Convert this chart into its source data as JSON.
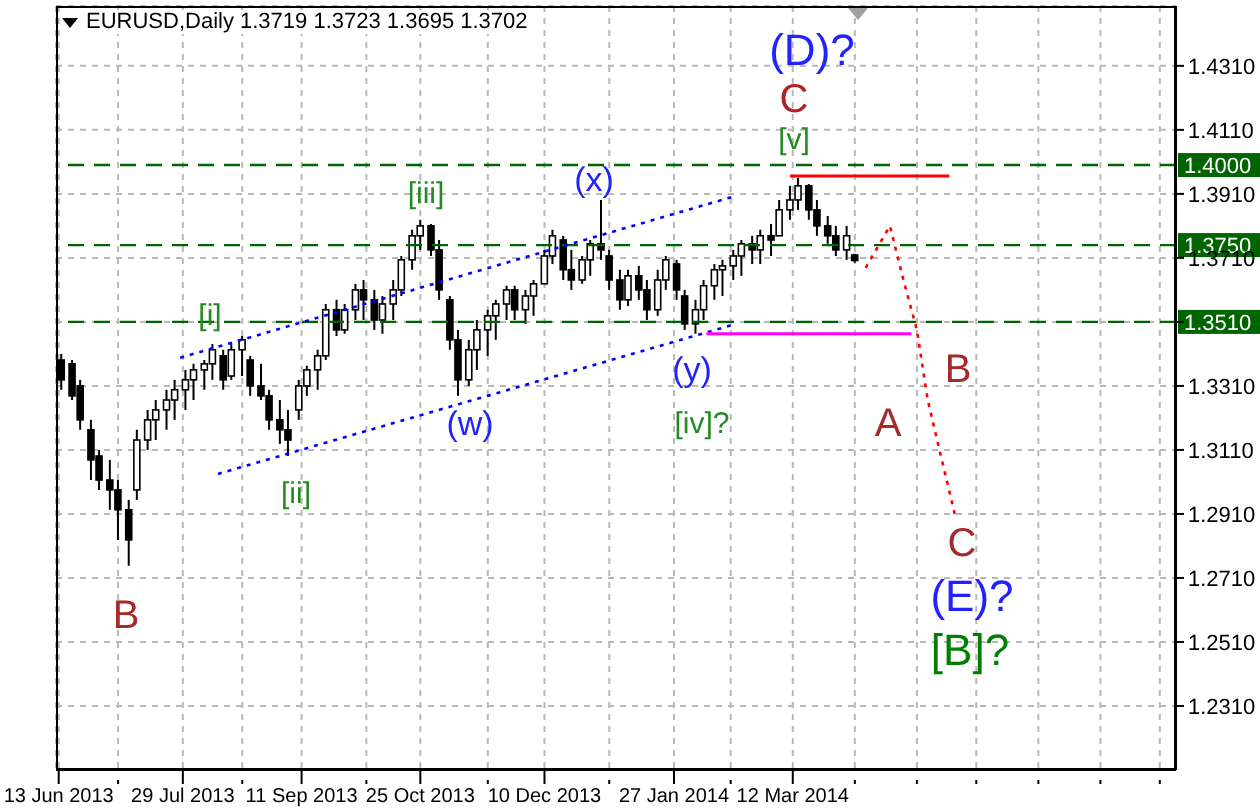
{
  "chart_data": {
    "type": "candlestick",
    "title": "EURUSD,Daily 1.3719 1.3723 1.3695 1.3702",
    "color": "#000000",
    "grid": true,
    "x": [
      "2013-06-14",
      "2013-06-18",
      "2013-06-21",
      "2013-06-25",
      "2013-06-28",
      "2013-07-02",
      "2013-07-05",
      "2013-07-09",
      "2013-07-12",
      "2013-07-16",
      "2013-07-19",
      "2013-07-23",
      "2013-07-26",
      "2013-07-30",
      "2013-08-02",
      "2013-08-06",
      "2013-08-09",
      "2013-08-13",
      "2013-08-16",
      "2013-08-20",
      "2013-08-23",
      "2013-08-27",
      "2013-08-30",
      "2013-09-03",
      "2013-09-06",
      "2013-09-10",
      "2013-09-13",
      "2013-09-17",
      "2013-09-20",
      "2013-09-24",
      "2013-09-27",
      "2013-10-01",
      "2013-10-04",
      "2013-10-08",
      "2013-10-11",
      "2013-10-15",
      "2013-10-18",
      "2013-10-22",
      "2013-10-25",
      "2013-10-29",
      "2013-11-01",
      "2013-11-05",
      "2013-11-08",
      "2013-11-12",
      "2013-11-15",
      "2013-11-19",
      "2013-11-22",
      "2013-11-26",
      "2013-11-29",
      "2013-12-03",
      "2013-12-06",
      "2013-12-10",
      "2013-12-13",
      "2013-12-17",
      "2013-12-20",
      "2013-12-24",
      "2013-12-27",
      "2013-12-31",
      "2014-01-03",
      "2014-01-07",
      "2014-01-10",
      "2014-01-14",
      "2014-01-17",
      "2014-01-21",
      "2014-01-24",
      "2014-01-28",
      "2014-01-31",
      "2014-02-04",
      "2014-02-07",
      "2014-02-11",
      "2014-02-14",
      "2014-02-18",
      "2014-02-21",
      "2014-02-25",
      "2014-02-28",
      "2014-03-04",
      "2014-03-07",
      "2014-03-11",
      "2014-03-14",
      "2014-03-18",
      "2014-03-21",
      "2014-03-25",
      "2014-03-28",
      "2014-04-01",
      "2014-04-04"
    ],
    "ohlc": [
      [
        1.3391,
        1.341,
        1.3298,
        1.3329
      ],
      [
        1.3379,
        1.3391,
        1.3266,
        1.3279
      ],
      [
        1.331,
        1.3329,
        1.3173,
        1.3204
      ],
      [
        1.3173,
        1.3204,
        1.3016,
        1.3079
      ],
      [
        1.3091,
        1.311,
        1.2985,
        1.3016
      ],
      [
        1.3016,
        1.3079,
        1.2923,
        1.2985
      ],
      [
        1.2985,
        1.3016,
        1.2829,
        1.2923
      ],
      [
        1.2923,
        1.2954,
        1.2748,
        1.2829
      ],
      [
        1.2985,
        1.3173,
        1.2954,
        1.3141
      ],
      [
        1.3141,
        1.3235,
        1.311,
        1.3204
      ],
      [
        1.3204,
        1.3266,
        1.3141,
        1.3235
      ],
      [
        1.3235,
        1.3298,
        1.3173,
        1.3266
      ],
      [
        1.3266,
        1.3329,
        1.3204,
        1.3298
      ],
      [
        1.3298,
        1.336,
        1.3235,
        1.3329
      ],
      [
        1.3329,
        1.3379,
        1.3266,
        1.336
      ],
      [
        1.336,
        1.3391,
        1.3298,
        1.3379
      ],
      [
        1.3379,
        1.3441,
        1.3329,
        1.3423
      ],
      [
        1.3404,
        1.3423,
        1.3298,
        1.3329
      ],
      [
        1.3341,
        1.3441,
        1.3329,
        1.3423
      ],
      [
        1.3423,
        1.3466,
        1.3341,
        1.3454
      ],
      [
        1.3391,
        1.3404,
        1.3279,
        1.331
      ],
      [
        1.331,
        1.3379,
        1.3266,
        1.3279
      ],
      [
        1.3279,
        1.3298,
        1.3173,
        1.3204
      ],
      [
        1.3204,
        1.3266,
        1.3129,
        1.3173
      ],
      [
        1.3173,
        1.3235,
        1.3091,
        1.3141
      ],
      [
        1.3235,
        1.3329,
        1.3204,
        1.331
      ],
      [
        1.331,
        1.3373,
        1.3279,
        1.336
      ],
      [
        1.336,
        1.3423,
        1.3298,
        1.3404
      ],
      [
        1.3404,
        1.3566,
        1.3391,
        1.3548
      ],
      [
        1.3548,
        1.3579,
        1.3466,
        1.3485
      ],
      [
        1.3485,
        1.3566,
        1.3473,
        1.3548
      ],
      [
        1.3548,
        1.3629,
        1.3516,
        1.361
      ],
      [
        1.361,
        1.3641,
        1.3516,
        1.3579
      ],
      [
        1.3579,
        1.361,
        1.3485,
        1.3516
      ],
      [
        1.3516,
        1.3591,
        1.3473,
        1.3566
      ],
      [
        1.3566,
        1.3641,
        1.3516,
        1.361
      ],
      [
        1.361,
        1.3716,
        1.3591,
        1.3704
      ],
      [
        1.3704,
        1.3798,
        1.3673,
        1.3779
      ],
      [
        1.3779,
        1.3829,
        1.3735,
        1.381
      ],
      [
        1.381,
        1.3816,
        1.3716,
        1.3735
      ],
      [
        1.3735,
        1.3766,
        1.3579,
        1.361
      ],
      [
        1.3579,
        1.3591,
        1.3423,
        1.3454
      ],
      [
        1.3454,
        1.3485,
        1.3279,
        1.3329
      ],
      [
        1.3329,
        1.3454,
        1.331,
        1.3423
      ],
      [
        1.3423,
        1.3516,
        1.336,
        1.3485
      ],
      [
        1.3485,
        1.3548,
        1.3404,
        1.3529
      ],
      [
        1.3529,
        1.3579,
        1.3454,
        1.3566
      ],
      [
        1.3566,
        1.3623,
        1.3516,
        1.361
      ],
      [
        1.361,
        1.3623,
        1.3516,
        1.3548
      ],
      [
        1.3548,
        1.361,
        1.3504,
        1.3591
      ],
      [
        1.3591,
        1.3641,
        1.3529,
        1.3629
      ],
      [
        1.3629,
        1.3735,
        1.3629,
        1.3716
      ],
      [
        1.3716,
        1.3798,
        1.3691,
        1.3779
      ],
      [
        1.3766,
        1.3779,
        1.3641,
        1.3673
      ],
      [
        1.3673,
        1.3735,
        1.361,
        1.3641
      ],
      [
        1.3641,
        1.3716,
        1.3629,
        1.3704
      ],
      [
        1.3704,
        1.3766,
        1.3654,
        1.3754
      ],
      [
        1.3754,
        1.3891,
        1.3704,
        1.3735
      ],
      [
        1.3716,
        1.3735,
        1.361,
        1.3641
      ],
      [
        1.3641,
        1.3673,
        1.3548,
        1.3579
      ],
      [
        1.3579,
        1.3673,
        1.356,
        1.3654
      ],
      [
        1.3654,
        1.3685,
        1.3579,
        1.361
      ],
      [
        1.361,
        1.3641,
        1.3516,
        1.3548
      ],
      [
        1.3548,
        1.3673,
        1.3529,
        1.3641
      ],
      [
        1.3641,
        1.3716,
        1.361,
        1.3704
      ],
      [
        1.3691,
        1.3704,
        1.3579,
        1.361
      ],
      [
        1.3591,
        1.361,
        1.3485,
        1.3504
      ],
      [
        1.3504,
        1.3579,
        1.3473,
        1.3548
      ],
      [
        1.3548,
        1.3641,
        1.3516,
        1.3623
      ],
      [
        1.3623,
        1.3691,
        1.3579,
        1.3673
      ],
      [
        1.3673,
        1.3704,
        1.3591,
        1.3685
      ],
      [
        1.3685,
        1.3735,
        1.3641,
        1.3716
      ],
      [
        1.3716,
        1.3766,
        1.3654,
        1.3754
      ],
      [
        1.3754,
        1.3779,
        1.3691,
        1.3735
      ],
      [
        1.3735,
        1.3798,
        1.3691,
        1.3779
      ],
      [
        1.3779,
        1.3816,
        1.3716,
        1.3766
      ],
      [
        1.3779,
        1.3891,
        1.3779,
        1.386
      ],
      [
        1.386,
        1.3935,
        1.3829,
        1.3891
      ],
      [
        1.3891,
        1.396,
        1.386,
        1.3935
      ],
      [
        1.3935,
        1.3941,
        1.3829,
        1.386
      ],
      [
        1.386,
        1.3891,
        1.3779,
        1.381
      ],
      [
        1.381,
        1.3841,
        1.3754,
        1.3779
      ],
      [
        1.3779,
        1.381,
        1.3716,
        1.3735
      ],
      [
        1.3735,
        1.381,
        1.3704,
        1.3779
      ],
      [
        1.3719,
        1.3723,
        1.3695,
        1.3702
      ]
    ],
    "series": [
      {
        "type": "line",
        "color": "#0000ff",
        "line_style": "dotted",
        "x": [
          "2013-07-28",
          "2014-02-19"
        ],
        "values": [
          1.3398,
          1.3904
        ]
      },
      {
        "type": "line",
        "color": "#0000ff",
        "line_style": "dotted",
        "x": [
          "2013-08-11",
          "2014-02-19"
        ],
        "values": [
          1.3035,
          1.3504
        ]
      },
      {
        "type": "line",
        "color": "#ff0000",
        "line_style": "solid",
        "x": [
          "2014-03-11",
          "2014-05-09"
        ],
        "values": [
          1.3966,
          1.3966
        ]
      },
      {
        "type": "line",
        "color": "#ff00ff",
        "line_style": "solid",
        "x": [
          "2014-02-08",
          "2014-04-25"
        ],
        "values": [
          1.3473,
          1.3473
        ]
      },
      {
        "type": "line",
        "color": "#ff0000",
        "line_style": "dotted",
        "x": [
          "2014-04-08",
          "2014-04-17",
          "2014-04-22",
          "2014-04-27",
          "2014-05-01",
          "2014-05-05",
          "2014-05-11"
        ],
        "values": [
          1.3679,
          1.381,
          1.3641,
          1.3485,
          1.3266,
          1.3123,
          1.291
        ]
      }
    ],
    "ref_lines": [
      {
        "axis": "y",
        "value": 1.4,
        "label": "1.4000",
        "color": "#006400",
        "line_style": "dashed"
      },
      {
        "axis": "y",
        "value": 1.375,
        "label": "1.3750",
        "color": "#006400",
        "line_style": "dashed"
      },
      {
        "axis": "y",
        "value": 1.351,
        "label": "1.3510",
        "color": "#006400",
        "line_style": "dashed"
      }
    ],
    "annotations": [
      "[i]",
      "[ii]",
      "[iii]",
      "(w)",
      "(x)",
      "(y)",
      "[iv]?",
      "[v]",
      "C",
      "(D)?",
      "B",
      "A",
      "C",
      "(E)?",
      "[B]?",
      "B"
    ],
    "xlim": [
      "2013-06-12",
      "2014-08-01"
    ],
    "xticks": [
      {
        "value": "2013-06-13",
        "label": "13 Jun 2013"
      },
      {
        "value": "2013-07-05",
        "label": null
      },
      {
        "value": "2013-07-29",
        "label": "29 Jul 2013"
      },
      {
        "value": "2013-08-20",
        "label": null
      },
      {
        "value": "2013-09-11",
        "label": "11 Sep 2013"
      },
      {
        "value": "2013-10-05",
        "label": null
      },
      {
        "value": "2013-10-25",
        "label": "25 Oct 2013"
      },
      {
        "value": "2013-11-19",
        "label": null
      },
      {
        "value": "2013-12-10",
        "label": "10 Dec 2013"
      },
      {
        "value": "2014-01-03",
        "label": null
      },
      {
        "value": "2014-01-27",
        "label": "27 Jan 2014"
      },
      {
        "value": "2014-02-17",
        "label": null
      },
      {
        "value": "2014-03-12",
        "label": "12 Mar 2014"
      },
      {
        "value": "2014-04-04",
        "label": null
      },
      {
        "value": "2014-04-27",
        "label": null
      },
      {
        "value": "2014-05-19",
        "label": null
      },
      {
        "value": "2014-06-11",
        "label": null
      },
      {
        "value": "2014-07-04",
        "label": null
      },
      {
        "value": "2014-07-26",
        "label": null
      }
    ],
    "ylim": [
      1.211,
      1.4497
    ],
    "yticks": [
      {
        "value": 1.231,
        "label": "1.2310"
      },
      {
        "value": 1.251,
        "label": "1.2510"
      },
      {
        "value": 1.271,
        "label": "1.2710"
      },
      {
        "value": 1.291,
        "label": "1.2910"
      },
      {
        "value": 1.311,
        "label": "1.3110"
      },
      {
        "value": 1.331,
        "label": "1.3310"
      },
      {
        "value": 1.351,
        "label": null
      },
      {
        "value": 1.371,
        "label": "1.3710"
      },
      {
        "value": 1.391,
        "label": "1.3910"
      },
      {
        "value": 1.411,
        "label": "1.4110"
      },
      {
        "value": 1.431,
        "label": "1.4310"
      }
    ]
  }
}
